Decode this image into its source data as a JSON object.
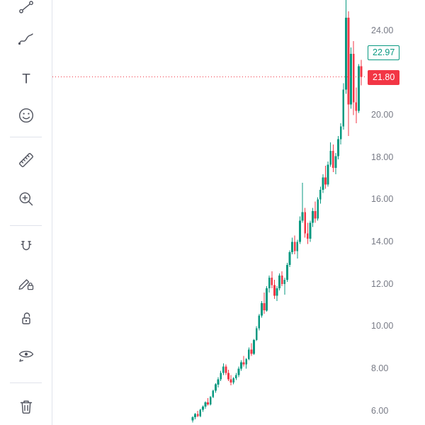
{
  "colors": {
    "up": "#089981",
    "down": "#f23645",
    "axis_text": "#787b86",
    "icon": "#50535e",
    "divider": "#e0e3eb",
    "last_price_line": "#f23645"
  },
  "toolbar": {
    "text_tool_glyph": "T",
    "items": [
      {
        "name": "trend-line-tool",
        "icon": "trend-line-icon"
      },
      {
        "name": "brush-tool",
        "icon": "brush-icon"
      },
      {
        "name": "text-tool",
        "icon": "text-icon"
      },
      {
        "name": "emoji-tool",
        "icon": "smiley-icon"
      },
      {
        "name": "measure-tool",
        "icon": "ruler-icon"
      },
      {
        "name": "zoom-in-tool",
        "icon": "zoom-in-icon"
      },
      {
        "name": "magnet-tool",
        "icon": "magnet-icon"
      },
      {
        "name": "drawing-mode-lock-tool",
        "icon": "pencil-lock-icon"
      },
      {
        "name": "lock-all-drawings-tool",
        "icon": "lock-icon"
      },
      {
        "name": "hide-all-drawings-tool",
        "icon": "eye-icon"
      },
      {
        "name": "remove-all-drawings-tool",
        "icon": "trash-icon"
      }
    ]
  },
  "price_axis": {
    "labels": [
      {
        "text": "24.00",
        "price": 24
      },
      {
        "text": "20.00",
        "price": 20
      },
      {
        "text": "18.00",
        "price": 18
      },
      {
        "text": "16.00",
        "price": 16
      },
      {
        "text": "14.00",
        "price": 14
      },
      {
        "text": "12.00",
        "price": 12
      },
      {
        "text": "10.00",
        "price": 10
      },
      {
        "text": "8.00",
        "price": 8
      },
      {
        "text": "6.00",
        "price": 6
      }
    ],
    "badges": [
      {
        "text": "22.97",
        "price": 22.97,
        "variant": "outline-up",
        "name": "counter-price-badge"
      },
      {
        "text": "21.80",
        "price": 21.8,
        "variant": "fill-down",
        "name": "last-price-badge"
      }
    ]
  },
  "chart_data": {
    "type": "candlestick",
    "title": "",
    "last_price": 21.8,
    "secondary_price": 22.97,
    "y_axis": {
      "top_price": 25.44,
      "bottom_price": 5.33,
      "tick_step": 2
    },
    "plot_x": {
      "start": 272,
      "end": 510
    },
    "grid": false,
    "candles": [
      [
        5.55,
        5.75,
        5.45,
        5.7
      ],
      [
        5.7,
        5.9,
        5.6,
        5.85
      ],
      [
        5.85,
        6.0,
        5.7,
        5.75
      ],
      [
        5.75,
        6.1,
        5.7,
        6.05
      ],
      [
        6.05,
        6.25,
        5.95,
        6.2
      ],
      [
        6.2,
        6.45,
        6.1,
        6.4
      ],
      [
        6.4,
        6.6,
        6.25,
        6.3
      ],
      [
        6.3,
        6.7,
        6.25,
        6.65
      ],
      [
        6.65,
        7.0,
        6.6,
        6.95
      ],
      [
        6.95,
        7.3,
        6.85,
        7.25
      ],
      [
        7.25,
        7.6,
        7.1,
        7.5
      ],
      [
        7.5,
        7.9,
        7.4,
        7.8
      ],
      [
        7.8,
        8.25,
        7.7,
        8.1
      ],
      [
        8.1,
        8.2,
        7.7,
        7.8
      ],
      [
        7.8,
        7.95,
        7.4,
        7.5
      ],
      [
        7.5,
        7.7,
        7.2,
        7.35
      ],
      [
        7.35,
        7.6,
        7.25,
        7.55
      ],
      [
        7.55,
        7.8,
        7.45,
        7.7
      ],
      [
        7.7,
        8.1,
        7.6,
        8.0
      ],
      [
        8.0,
        8.4,
        7.9,
        8.3
      ],
      [
        8.3,
        8.6,
        8.1,
        8.2
      ],
      [
        8.2,
        8.5,
        8.0,
        8.45
      ],
      [
        8.45,
        9.0,
        8.4,
        8.9
      ],
      [
        8.9,
        9.2,
        8.6,
        8.7
      ],
      [
        8.7,
        9.4,
        8.65,
        9.35
      ],
      [
        9.35,
        10.0,
        9.3,
        9.9
      ],
      [
        9.9,
        10.6,
        9.8,
        10.5
      ],
      [
        10.5,
        11.2,
        10.4,
        11.1
      ],
      [
        11.1,
        11.6,
        10.6,
        10.75
      ],
      [
        10.75,
        11.9,
        10.7,
        11.8
      ],
      [
        11.8,
        12.4,
        11.6,
        12.3
      ],
      [
        12.3,
        12.6,
        11.8,
        11.95
      ],
      [
        11.95,
        12.2,
        11.3,
        11.45
      ],
      [
        11.45,
        11.9,
        11.2,
        11.8
      ],
      [
        11.8,
        12.5,
        11.7,
        12.4
      ],
      [
        12.4,
        12.6,
        11.9,
        12.0
      ],
      [
        12.0,
        12.3,
        11.5,
        12.2
      ],
      [
        12.2,
        13.0,
        12.1,
        12.9
      ],
      [
        12.9,
        13.6,
        12.8,
        13.5
      ],
      [
        13.5,
        14.2,
        13.4,
        14.0
      ],
      [
        14.0,
        14.3,
        13.4,
        13.55
      ],
      [
        13.55,
        14.1,
        13.2,
        14.0
      ],
      [
        14.0,
        15.2,
        13.9,
        15.0
      ],
      [
        15.0,
        16.8,
        14.9,
        15.4
      ],
      [
        15.4,
        15.6,
        14.2,
        14.4
      ],
      [
        14.4,
        14.9,
        13.9,
        14.15
      ],
      [
        14.15,
        15.0,
        14.0,
        14.9
      ],
      [
        14.9,
        15.6,
        14.7,
        15.45
      ],
      [
        15.45,
        15.9,
        14.9,
        15.1
      ],
      [
        15.1,
        16.1,
        15.0,
        16.0
      ],
      [
        16.0,
        16.6,
        15.8,
        16.45
      ],
      [
        16.45,
        17.2,
        16.3,
        17.05
      ],
      [
        17.05,
        17.6,
        16.5,
        16.7
      ],
      [
        16.7,
        17.8,
        16.6,
        17.65
      ],
      [
        17.65,
        18.7,
        17.55,
        18.3
      ],
      [
        18.3,
        18.6,
        17.3,
        17.5
      ],
      [
        17.5,
        18.2,
        17.2,
        18.05
      ],
      [
        18.05,
        19.0,
        17.9,
        18.85
      ],
      [
        18.85,
        19.6,
        18.6,
        19.45
      ],
      [
        19.45,
        21.5,
        19.3,
        21.2
      ],
      [
        21.2,
        25.6,
        21.0,
        24.6
      ],
      [
        24.6,
        24.9,
        19.0,
        20.5
      ],
      [
        20.5,
        23.2,
        20.3,
        22.9
      ],
      [
        22.9,
        23.5,
        20.0,
        20.6
      ],
      [
        20.6,
        21.3,
        19.6,
        20.2
      ],
      [
        20.2,
        22.4,
        20.1,
        22.3
      ],
      [
        22.3,
        22.6,
        21.4,
        21.8
      ]
    ]
  }
}
